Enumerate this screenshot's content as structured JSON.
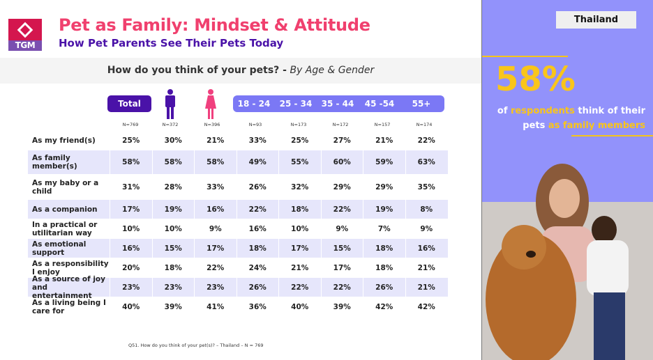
{
  "logo": {
    "text": "TGM"
  },
  "header": {
    "title": "Pet as Family: Mindset & Attitude",
    "subtitle": "How Pet Parents See Their Pets Today"
  },
  "question": {
    "main": "How do you think of your pets? -",
    "by": "By Age & Gender"
  },
  "columns": {
    "total": "Total",
    "ages": [
      "18 - 24",
      "25 - 34",
      "35 - 44",
      "45 -54",
      "55+"
    ]
  },
  "n": [
    "N=769",
    "N=372",
    "N=396",
    "N=93",
    "N=173",
    "N=172",
    "N=157",
    "N=174"
  ],
  "rows": [
    {
      "label": "As my friend(s)",
      "values": [
        "25%",
        "30%",
        "21%",
        "33%",
        "25%",
        "27%",
        "21%",
        "22%"
      ]
    },
    {
      "label": "As family member(s)",
      "values": [
        "58%",
        "58%",
        "58%",
        "49%",
        "55%",
        "60%",
        "59%",
        "63%"
      ]
    },
    {
      "label": "As my baby or a child",
      "values": [
        "31%",
        "28%",
        "33%",
        "26%",
        "32%",
        "29%",
        "29%",
        "35%"
      ]
    },
    {
      "label": "As a companion",
      "values": [
        "17%",
        "19%",
        "16%",
        "22%",
        "18%",
        "22%",
        "19%",
        "8%"
      ]
    },
    {
      "label": "In a practical or utilitarian way",
      "values": [
        "10%",
        "10%",
        "9%",
        "16%",
        "10%",
        "9%",
        "7%",
        "9%"
      ]
    },
    {
      "label": "As emotional support",
      "values": [
        "16%",
        "15%",
        "17%",
        "18%",
        "17%",
        "15%",
        "18%",
        "16%"
      ]
    },
    {
      "label": "As a responsibility I enjoy",
      "values": [
        "20%",
        "18%",
        "22%",
        "24%",
        "21%",
        "17%",
        "18%",
        "21%"
      ]
    },
    {
      "label": "As a source of joy and entertainment",
      "values": [
        "23%",
        "23%",
        "23%",
        "26%",
        "22%",
        "22%",
        "26%",
        "21%"
      ]
    },
    {
      "label": "As a living being I care for",
      "values": [
        "40%",
        "39%",
        "41%",
        "36%",
        "40%",
        "39%",
        "42%",
        "42%"
      ]
    }
  ],
  "footnote": "Q51. How do you think of your pet(s)? – Thailand – N =  769",
  "side": {
    "country": "Thailand",
    "stat": "58%",
    "s1": "of",
    "s2": "respondents",
    "s3": "think of their pets",
    "s4": "as family members"
  },
  "colors": {
    "accent": "#f0406e",
    "purple": "#4a12a8",
    "side": "#9292fb",
    "yellow": "#f9c51a"
  }
}
